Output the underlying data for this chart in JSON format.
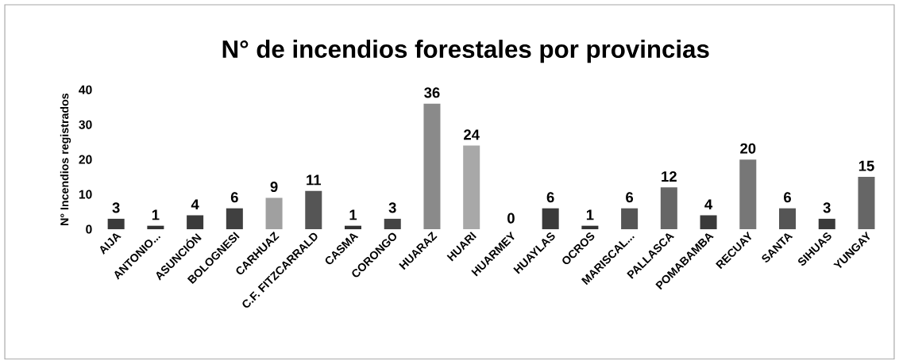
{
  "chart_data": {
    "type": "bar",
    "title": "N° de incendios forestales por provincias",
    "ylabel": "N° Incendios registrados",
    "categories": [
      "AIJA",
      "ANTONIO...",
      "ASUNCIÓN",
      "BOLOGNESI",
      "CARHUAZ",
      "C.F. FITZCARRALD",
      "CASMA",
      "CORONGO",
      "HUARAZ",
      "HUARI",
      "HUARMEY",
      "HUAYLAS",
      "OCROS",
      "MARISCAL...",
      "PALLASCA",
      "POMABAMBA",
      "RECUAY",
      "SANTA",
      "SIHUAS",
      "YUNGAY"
    ],
    "values": [
      3,
      1,
      4,
      6,
      9,
      11,
      1,
      3,
      36,
      24,
      0,
      6,
      1,
      6,
      12,
      4,
      20,
      6,
      3,
      15
    ],
    "colors": [
      "#3a3a3a",
      "#333333",
      "#3a3a3a",
      "#404040",
      "#a0a0a0",
      "#555555",
      "#333333",
      "#444444",
      "#8a8a8a",
      "#a8a8a8",
      "#333333",
      "#3a3a3a",
      "#333333",
      "#555555",
      "#666666",
      "#3a3a3a",
      "#777777",
      "#555555",
      "#3a3a3a",
      "#666666"
    ],
    "ylim": [
      0,
      40
    ],
    "yticks": [
      0,
      10,
      20,
      30,
      40
    ],
    "data_labels": true,
    "grid": false
  }
}
